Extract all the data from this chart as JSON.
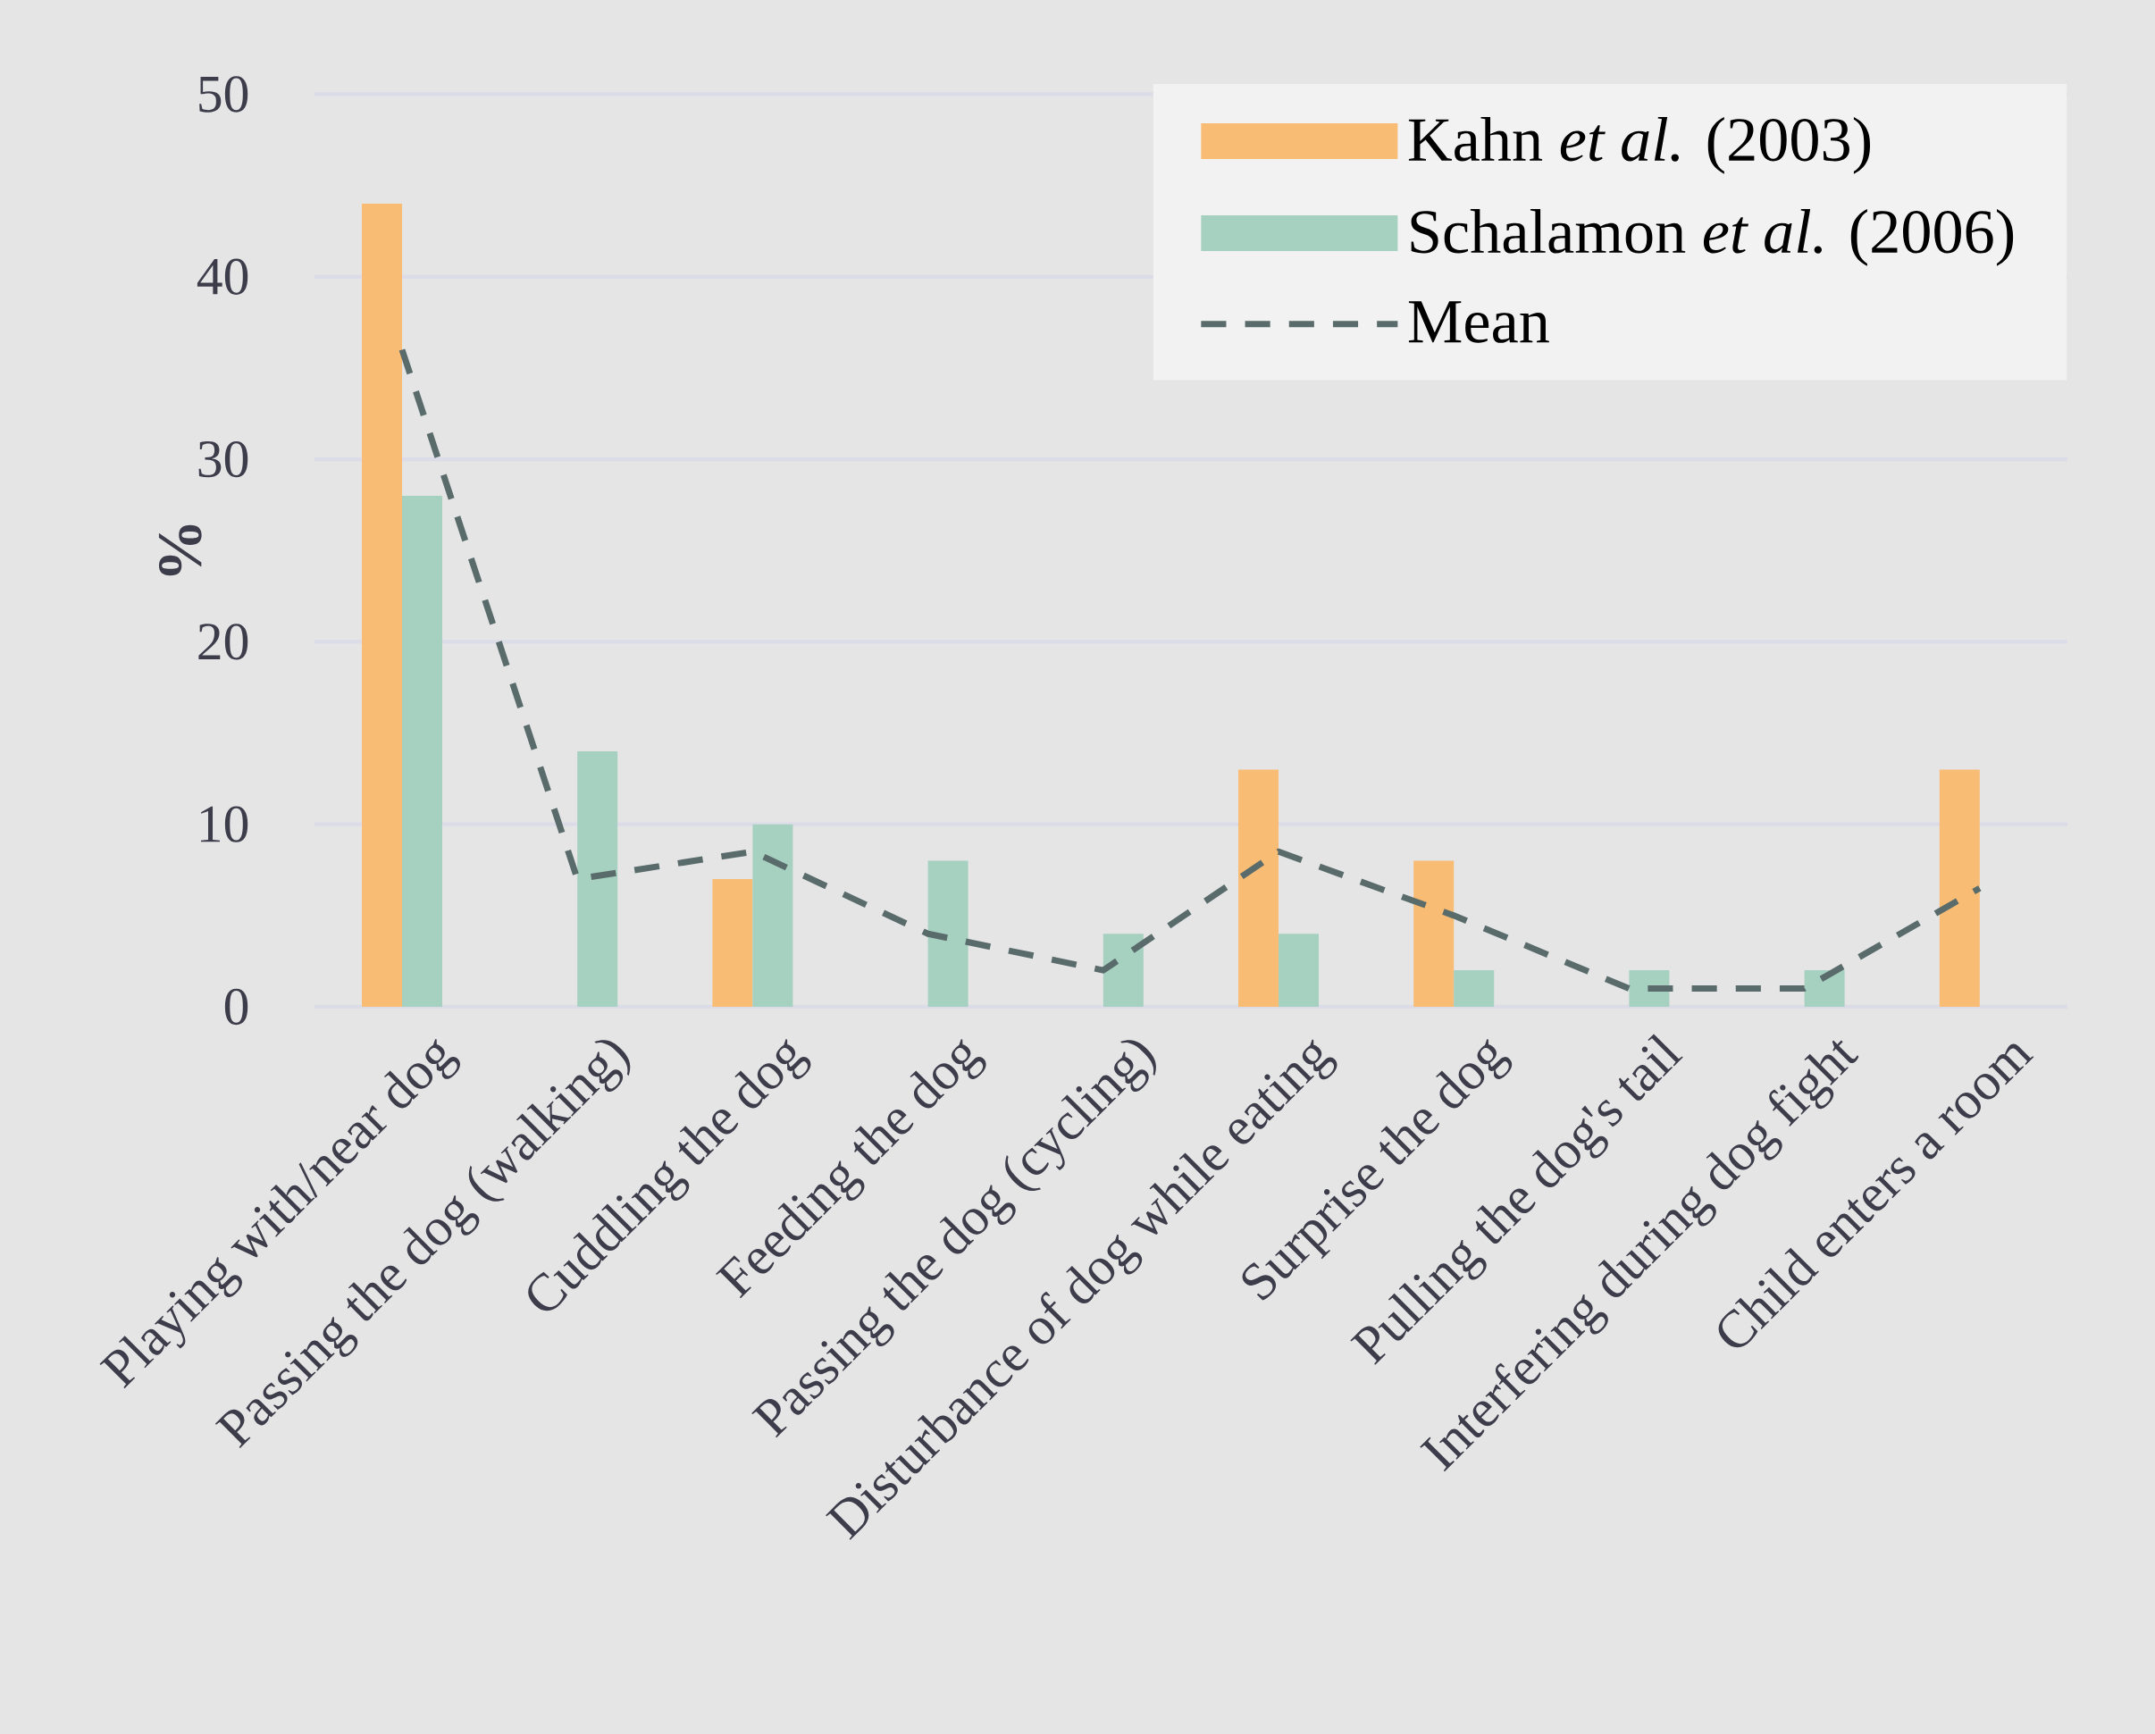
{
  "chart_data": {
    "type": "bar",
    "ylabel": "%",
    "categories": [
      "Playing with/near dog",
      "Passing the dog (walking)",
      "Cuddling the dog",
      "Feeding the dog",
      "Passing the dog (cycling)",
      "Disturbance of dog while eating",
      "Surprise the dog",
      "Pulling the dog's tail",
      "Interfering during dog fight",
      "Child enters a room"
    ],
    "series": [
      {
        "name": "Kahn *et al.* (2003)",
        "color": "#f8bc74",
        "values": [
          44,
          0,
          7,
          0,
          0,
          13,
          8,
          0,
          0,
          13
        ]
      },
      {
        "name": "Schalamon *et al.* (2006)",
        "color": "#a6d0c0",
        "values": [
          28,
          14,
          10,
          8,
          4,
          4,
          2,
          2,
          2,
          0
        ]
      },
      {
        "name": "Mean",
        "type": "line",
        "color": "#5a6b6b",
        "line_style": "dashed",
        "values": [
          36,
          7,
          8.5,
          4,
          2,
          8.5,
          5,
          1,
          1,
          6.5
        ]
      }
    ],
    "ylim": [
      0,
      50
    ],
    "yticks": [
      0,
      10,
      20,
      30,
      40,
      50
    ],
    "grid": "y",
    "legend": "top right"
  }
}
